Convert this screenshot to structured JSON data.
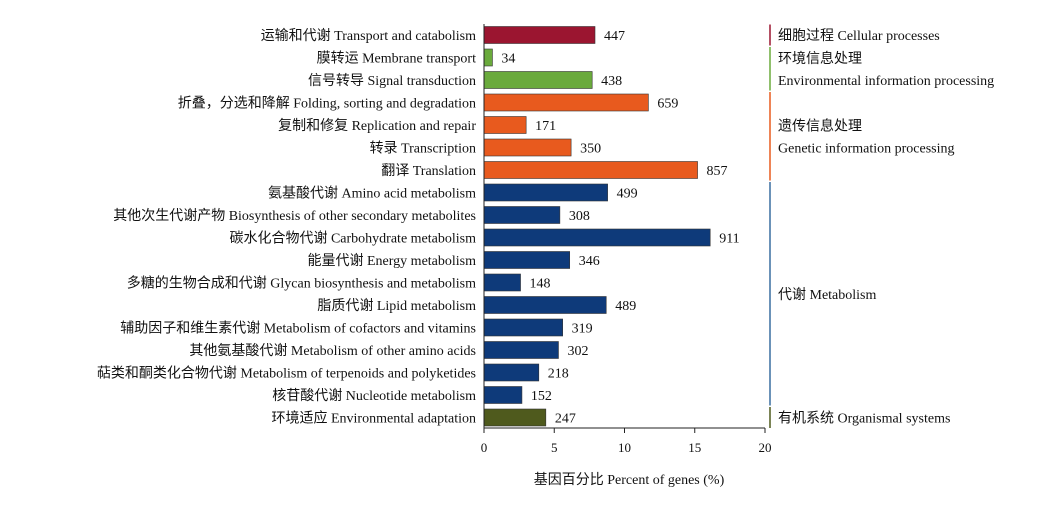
{
  "chart_data": {
    "type": "bar",
    "orientation": "horizontal",
    "xlabel": "基因百分比 Percent of genes (%)",
    "xlim": [
      0,
      20
    ],
    "xticks": [
      "0",
      "5",
      "10",
      "15",
      "20"
    ],
    "grid": false,
    "legend": "none",
    "categories": [
      "运输和代谢 Transport and catabolism",
      "膜转运 Membrane transport",
      "信号转导 Signal transduction",
      "折叠，分选和降解 Folding, sorting and degradation",
      "复制和修复 Replication and repair",
      "转录 Transcription",
      "翻译 Translation",
      "氨基酸代谢 Amino acid metabolism",
      "其他次生代谢产物 Biosynthesis of other secondary metabolites",
      "碳水化合物代谢 Carbohydrate metabolism",
      "能量代谢 Energy metabolism",
      "多糖的生物合成和代谢 Glycan biosynthesis and metabolism",
      "脂质代谢 Lipid metabolism",
      "辅助因子和维生素代谢 Metabolism of cofactors and vitamins",
      "其他氨基酸代谢 Metabolism of other amino acids",
      "萜类和酮类化合物代谢 Metabolism of terpenoids and polyketides",
      "核苷酸代谢 Nucleotide metabolism",
      "环境适应 Environmental adaptation"
    ],
    "values": [
      7.9,
      0.6,
      7.7,
      11.7,
      3.0,
      6.2,
      15.2,
      8.8,
      5.4,
      16.1,
      6.1,
      2.6,
      8.7,
      5.6,
      5.3,
      3.9,
      2.7,
      4.4
    ],
    "data_labels": [
      "447",
      "34",
      "438",
      "659",
      "171",
      "350",
      "857",
      "499",
      "308",
      "911",
      "346",
      "148",
      "489",
      "319",
      "302",
      "218",
      "152",
      "247"
    ],
    "colors": [
      "#9b1530",
      "#6aaa3c",
      "#6aaa3c",
      "#e85a1e",
      "#e85a1e",
      "#e85a1e",
      "#e85a1e",
      "#0e3a7a",
      "#0e3a7a",
      "#0e3a7a",
      "#0e3a7a",
      "#0e3a7a",
      "#0e3a7a",
      "#0e3a7a",
      "#0e3a7a",
      "#0e3a7a",
      "#0e3a7a",
      "#4f5a1d"
    ],
    "groups": [
      {
        "lines": [
          "细胞过程 Cellular processes"
        ],
        "color": "#9b1530",
        "first": 0,
        "last": 0
      },
      {
        "lines": [
          "环境信息处理",
          "Environmental information processing"
        ],
        "color": "#6aaa3c",
        "first": 1,
        "last": 2
      },
      {
        "lines": [
          "遗传信息处理",
          "Genetic information processing"
        ],
        "color": "#e85a1e",
        "first": 3,
        "last": 6
      },
      {
        "lines": [
          "代谢 Metabolism"
        ],
        "color": "#3a6fa0",
        "first": 7,
        "last": 16
      },
      {
        "lines": [
          "有机系统 Organismal systems"
        ],
        "color": "#4f5a1d",
        "first": 17,
        "last": 17
      }
    ]
  }
}
